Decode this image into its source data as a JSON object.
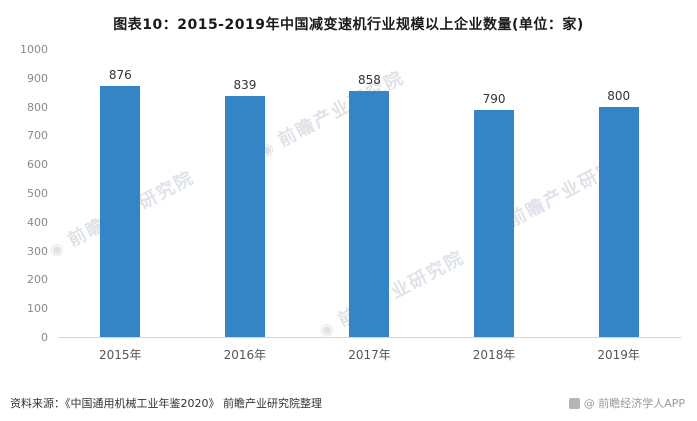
{
  "title": "图表10：2015-2019年中国减变速机行业规模以上企业数量(单位：家)",
  "chart_data": {
    "type": "bar",
    "categories": [
      "2015年",
      "2016年",
      "2017年",
      "2018年",
      "2019年"
    ],
    "values": [
      876,
      839,
      858,
      790,
      800
    ],
    "title": "图表10：2015-2019年中国减变速机行业规模以上企业数量(单位：家)",
    "xlabel": "",
    "ylabel": "",
    "ylim": [
      0,
      1000
    ],
    "ytick_interval": 100,
    "bar_color": "#3585C6",
    "grid": false,
    "legend": "none"
  },
  "watermark": {
    "text": "前瞻产业研究院",
    "icon": "qianzhan-logo-icon"
  },
  "footer": {
    "source": "资料来源：《中国通用机械工业年鉴2020》 前瞻产业研究院整理",
    "credit": "@ 前瞻经济学人APP"
  }
}
